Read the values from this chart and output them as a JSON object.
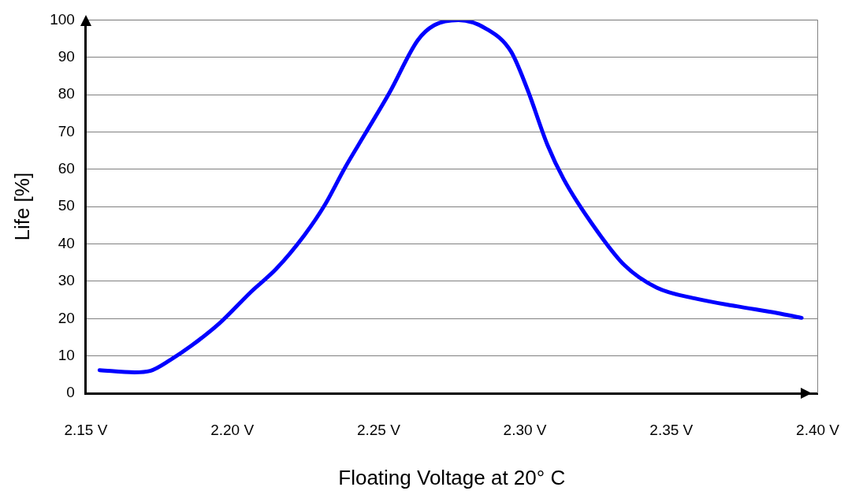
{
  "chart_data": {
    "type": "line",
    "xlabel": "Floating Voltage at 20° C",
    "ylabel": "Life [%]",
    "series": [
      {
        "color": "#0000ff",
        "x": [
          2.1547,
          2.1666,
          2.172,
          2.179,
          2.186,
          2.1956,
          2.2066,
          2.215,
          2.2247,
          2.2316,
          2.2385,
          2.2454,
          2.2537,
          2.2634,
          2.269,
          2.2773,
          2.2869,
          2.2952,
          2.3008,
          2.3077,
          2.3132,
          2.3229,
          2.334,
          2.345,
          2.3586,
          2.3724,
          2.3862,
          2.3945
        ],
        "values": [
          6.2,
          5.6,
          6,
          9,
          12.7,
          18.7,
          27.3,
          33.3,
          42.4,
          50.4,
          60.4,
          69.5,
          80.5,
          94.6,
          98.6,
          100,
          97.6,
          91.6,
          81.5,
          66.5,
          57.4,
          45.4,
          34.3,
          28.3,
          25.3,
          23.3,
          21.5,
          20.2
        ]
      }
    ],
    "xlim": [
      2.15,
      2.4
    ],
    "xticks": [
      {
        "value": 2.15,
        "label": "2.15 V"
      },
      {
        "value": 2.2,
        "label": "2.20 V"
      },
      {
        "value": 2.25,
        "label": "2.25 V"
      },
      {
        "value": 2.3,
        "label": "2.30 V"
      },
      {
        "value": 2.35,
        "label": "2.35 V"
      },
      {
        "value": 2.4,
        "label": "2.40 V"
      }
    ],
    "ylim": [
      0,
      100
    ],
    "yticks": [
      0,
      10,
      20,
      30,
      40,
      50,
      60,
      70,
      80,
      90,
      100
    ],
    "grid": "y",
    "marker": "none",
    "line_style": "solid"
  }
}
